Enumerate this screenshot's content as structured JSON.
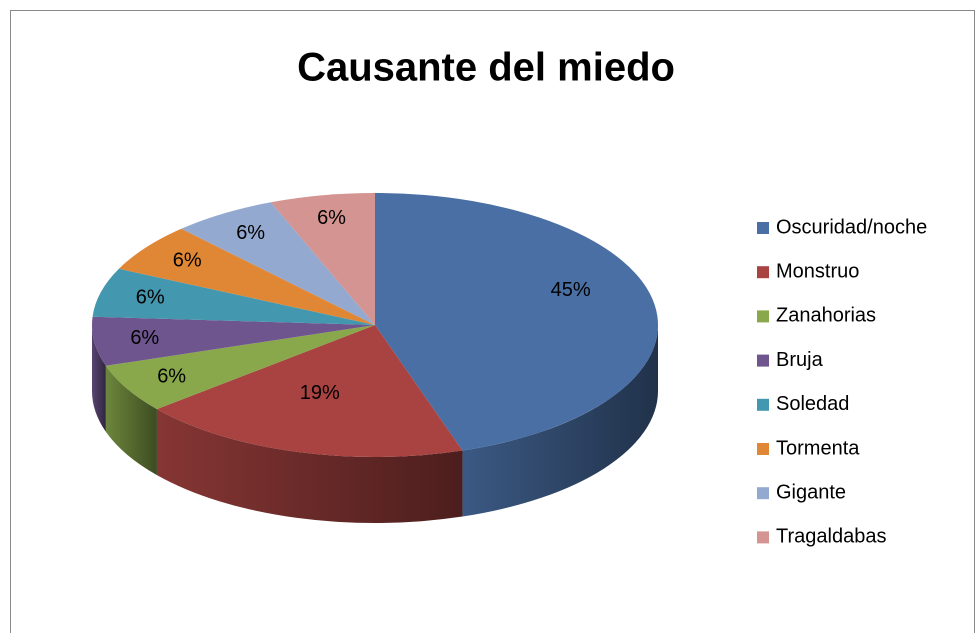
{
  "chart_data": {
    "type": "pie3d",
    "title": "Causante del miedo",
    "categories": [
      "Oscuridad/noche",
      "Monstruo",
      "Zanahorias",
      "Bruja",
      "Soledad",
      "Tormenta",
      "Gigante",
      "Tragaldabas"
    ],
    "values": [
      45,
      19,
      6,
      6,
      6,
      6,
      6,
      6
    ],
    "value_labels": [
      "45%",
      "19%",
      "6%",
      "6%",
      "6%",
      "6%",
      "6%",
      "6%"
    ],
    "colors": [
      "#4A6FA5",
      "#A84341",
      "#88A84B",
      "#6E558E",
      "#4397AE",
      "#E08735",
      "#94A9D0",
      "#D49491"
    ],
    "legend": "right"
  }
}
